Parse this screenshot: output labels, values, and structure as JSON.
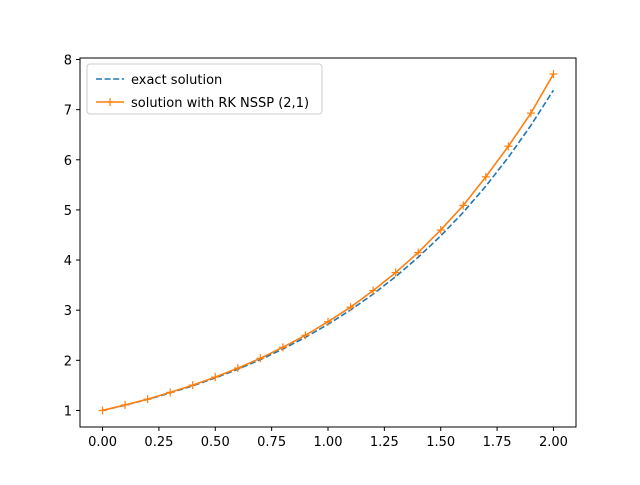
{
  "chart_data": {
    "type": "line",
    "title": "",
    "xlabel": "",
    "ylabel": "",
    "xlim": [
      -0.1,
      2.1
    ],
    "ylim": [
      0.67,
      8.03
    ],
    "grid": false,
    "legend_position": "top-left",
    "x_ticks": [
      0.0,
      0.25,
      0.5,
      0.75,
      1.0,
      1.25,
      1.5,
      1.75,
      2.0
    ],
    "x_tick_labels": [
      "0.00",
      "0.25",
      "0.50",
      "0.75",
      "1.00",
      "1.25",
      "1.50",
      "1.75",
      "2.00"
    ],
    "y_ticks": [
      1,
      2,
      3,
      4,
      5,
      6,
      7,
      8
    ],
    "y_tick_labels": [
      "1",
      "2",
      "3",
      "4",
      "5",
      "6",
      "7",
      "8"
    ],
    "series": [
      {
        "name": "exact solution",
        "color": "#1f77b4",
        "style": "dashed",
        "x": [
          0.0,
          0.1,
          0.2,
          0.3,
          0.4,
          0.5,
          0.6,
          0.7,
          0.8,
          0.9,
          1.0,
          1.1,
          1.2,
          1.3,
          1.4,
          1.5,
          1.6,
          1.7,
          1.8,
          1.9,
          2.0
        ],
        "y": [
          1.0,
          1.105,
          1.221,
          1.35,
          1.492,
          1.649,
          1.822,
          2.014,
          2.226,
          2.46,
          2.718,
          3.004,
          3.32,
          3.669,
          4.055,
          4.482,
          4.953,
          5.474,
          6.05,
          6.686,
          7.389
        ]
      },
      {
        "name": "solution with RK NSSP (2,1)",
        "color": "#ff7f0e",
        "style": "solid",
        "marker": "+",
        "x": [
          0.0,
          0.1,
          0.2,
          0.3,
          0.4,
          0.5,
          0.6,
          0.7,
          0.8,
          0.9,
          1.0,
          1.1,
          1.2,
          1.3,
          1.4,
          1.5,
          1.6,
          1.7,
          1.8,
          1.9,
          2.0
        ],
        "y": [
          1.0,
          1.11,
          1.225,
          1.36,
          1.505,
          1.665,
          1.845,
          2.04,
          2.26,
          2.5,
          2.77,
          3.06,
          3.39,
          3.75,
          4.15,
          4.6,
          5.09,
          5.66,
          6.27,
          6.93,
          7.71
        ]
      }
    ]
  }
}
